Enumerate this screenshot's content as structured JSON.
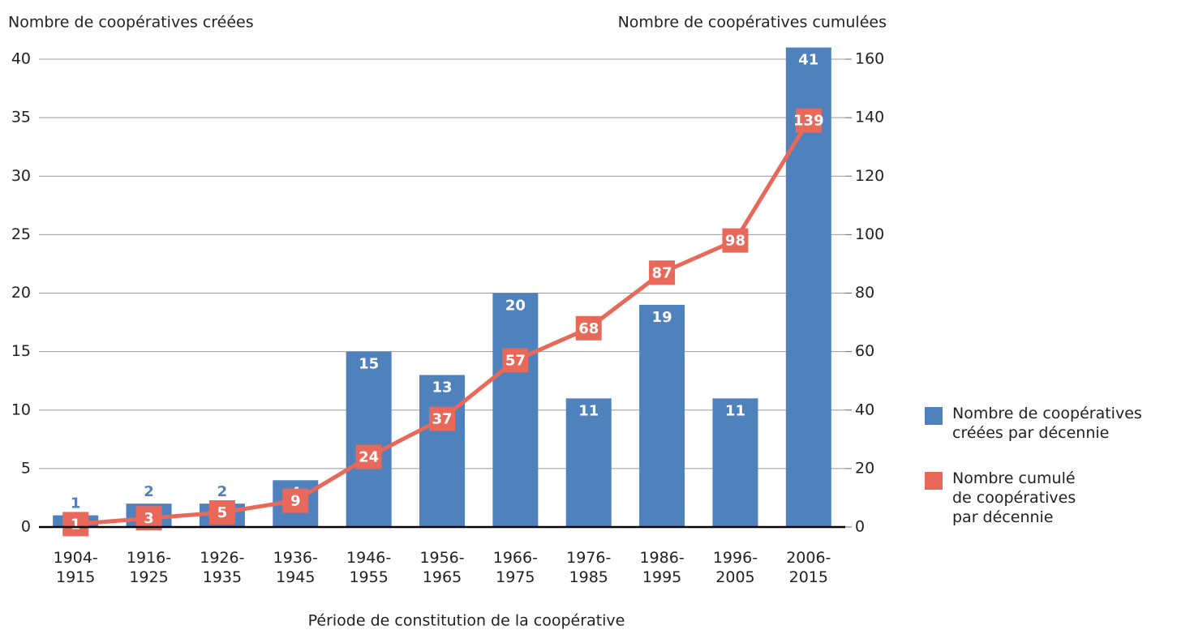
{
  "chart_data": {
    "type": "bar_line",
    "y_axis_label": "Nombre de coopératives créées",
    "y2_axis_label": "Nombre de coopératives cumulées",
    "x_axis_label": "Période de constitution de la coopérative",
    "categories": [
      "1904-\n1915",
      "1916-\n1925",
      "1926-\n1935",
      "1936-\n1945",
      "1946-\n1955",
      "1956-\n1965",
      "1966-\n1975",
      "1976-\n1985",
      "1986-\n1995",
      "1996-\n2005",
      "2006-\n2015"
    ],
    "series": [
      {
        "name": "Nombre de coopératives\ncréées par décennie",
        "color": "#4f81bd",
        "type": "bar",
        "values": [
          1,
          2,
          2,
          4,
          15,
          13,
          20,
          11,
          19,
          11,
          41
        ]
      },
      {
        "name": "Nombre cumulé\nde coopératives\npar décennie",
        "color": "#e8685a",
        "type": "line",
        "axis": "y2",
        "values": [
          1,
          3,
          5,
          9,
          24,
          37,
          57,
          68,
          87,
          98,
          139
        ]
      }
    ],
    "ylim": [
      0,
      40
    ],
    "yticks": [
      0,
      5,
      10,
      15,
      20,
      25,
      30,
      35,
      40
    ],
    "y2lim": [
      0,
      160
    ],
    "y2ticks": [
      0,
      20,
      40,
      60,
      80,
      100,
      120,
      140,
      160
    ],
    "grid": true
  }
}
